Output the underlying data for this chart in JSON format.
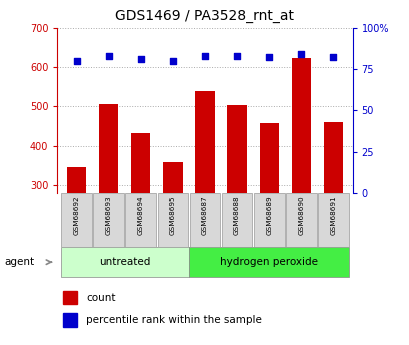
{
  "title": "GDS1469 / PA3528_rnt_at",
  "samples": [
    "GSM68692",
    "GSM68693",
    "GSM68694",
    "GSM68695",
    "GSM68687",
    "GSM68688",
    "GSM68689",
    "GSM68690",
    "GSM68691"
  ],
  "counts": [
    347,
    507,
    432,
    360,
    540,
    503,
    458,
    622,
    460
  ],
  "percentile_ranks": [
    80,
    83,
    81,
    80,
    83,
    83,
    82,
    84,
    82
  ],
  "ylim_left": [
    280,
    700
  ],
  "ylim_right": [
    0,
    100
  ],
  "yticks_left": [
    300,
    400,
    500,
    600,
    700
  ],
  "yticks_right": [
    0,
    25,
    50,
    75,
    100
  ],
  "bar_color": "#cc0000",
  "dot_color": "#0000cc",
  "grid_color": "#aaaaaa",
  "title_color": "#000000",
  "left_tick_color": "#cc0000",
  "right_tick_color": "#0000cc",
  "group_untreated_color": "#ccffcc",
  "group_hperoxide_color": "#44ee44",
  "bar_width": 0.6,
  "right_tick_labels": [
    "0",
    "25",
    "50",
    "75",
    "100%"
  ]
}
